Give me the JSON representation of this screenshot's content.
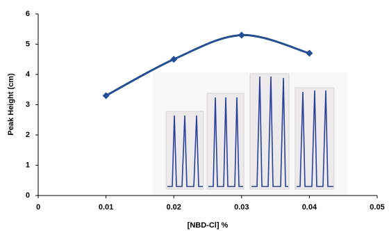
{
  "chart_data": {
    "type": "line",
    "x_label": "[NBD-Cl] %",
    "y_label": "Peak Height (cm)",
    "x": [
      0.01,
      0.02,
      0.03,
      0.04
    ],
    "series": [
      {
        "color": "#1f4e9c",
        "values": [
          3.3,
          4.5,
          5.3,
          4.7
        ]
      }
    ],
    "xlim": [
      0,
      0.05
    ],
    "xticks": [
      0,
      0.01,
      0.02,
      0.03,
      0.04,
      0.05
    ],
    "ylim": [
      0,
      6
    ],
    "yticks": [
      0,
      1,
      2,
      3,
      4,
      5,
      6
    ],
    "smooth": true,
    "markers": "diamond"
  }
}
